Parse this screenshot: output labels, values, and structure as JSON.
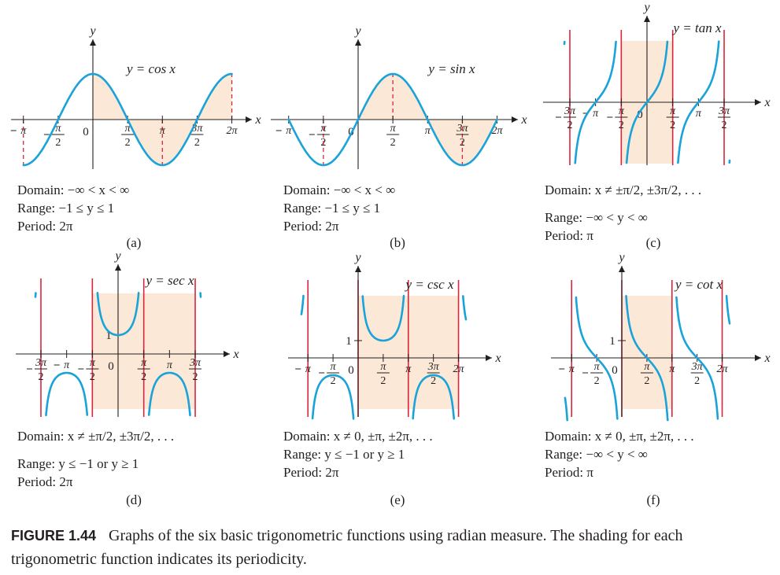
{
  "palette": {
    "curve": "#1aa3d9",
    "asymptote": "#d7263d",
    "shade": "#fbe8d7",
    "axis": "#231f20"
  },
  "figure": {
    "number": "FIGURE 1.44",
    "text": "Graphs of the six basic trigonometric functions using radian measure. The shading for each trigonometric function indicates its periodicity."
  },
  "chart_data": [
    {
      "type": "line",
      "panel": "(a)",
      "label": "y = cos x",
      "function": "cos",
      "xlim": [
        -3.1416,
        6.2832
      ],
      "ylim": [
        -1,
        1
      ],
      "tick_labels": [
        "π",
        "π/2",
        "0",
        "π/2",
        "π",
        "3π/2",
        "2π"
      ],
      "domain": "Domain: −∞ < x < ∞",
      "range": "Range:  −1 ≤ y ≤ 1",
      "period": "Period:  2π"
    },
    {
      "type": "line",
      "panel": "(b)",
      "label": "y = sin x",
      "function": "sin",
      "xlim": [
        -3.1416,
        6.2832
      ],
      "ylim": [
        -1,
        1
      ],
      "tick_labels": [
        "π",
        "π/2",
        "0",
        "π/2",
        "π",
        "3π/2",
        "2π"
      ],
      "domain": "Domain: −∞ < x < ∞",
      "range": "Range:  −1 ≤ y ≤ 1",
      "period": "Period:  2π"
    },
    {
      "type": "line",
      "panel": "(c)",
      "label": "y = tan x",
      "function": "tan",
      "asymptotes": [
        -4.7124,
        -1.5708,
        1.5708,
        4.7124
      ],
      "tick_labels": [
        "3π/2",
        "π",
        "π/2",
        "0",
        "π/2",
        "π",
        "3π/2"
      ],
      "domain": "Domain: x ≠ ±π/2, ±3π/2, . . .",
      "range": "Range:  −∞ < y < ∞",
      "period": "Period:  π"
    },
    {
      "type": "line",
      "panel": "(d)",
      "label": "y = sec x",
      "function": "sec",
      "asymptotes": [
        -4.7124,
        -1.5708,
        1.5708,
        4.7124
      ],
      "tick_labels": [
        "3π/2",
        "π",
        "π/2",
        "0",
        "π/2",
        "π",
        "3π/2"
      ],
      "y_tick": "1",
      "domain": "Domain: x ≠ ±π/2, ±3π/2, . . .",
      "range": "Range:  y ≤ −1 or y ≥ 1",
      "period": "Period:  2π"
    },
    {
      "type": "line",
      "panel": "(e)",
      "label": "y = csc x",
      "function": "csc",
      "asymptotes": [
        -3.1416,
        0,
        3.1416,
        6.2832
      ],
      "tick_labels": [
        "π",
        "π/2",
        "0",
        "π/2",
        "π",
        "3π/2",
        "2π"
      ],
      "y_tick": "1",
      "domain": "Domain: x ≠ 0, ±π, ±2π, . . .",
      "range": "Range:  y ≤ −1 or y ≥ 1",
      "period": "Period:  2π"
    },
    {
      "type": "line",
      "panel": "(f)",
      "label": "y = cot x",
      "function": "cot",
      "asymptotes": [
        -3.1416,
        0,
        3.1416,
        6.2832
      ],
      "tick_labels": [
        "π",
        "π/2",
        "0",
        "π/2",
        "π",
        "3π/2",
        "2π"
      ],
      "y_tick": "1",
      "domain": "Domain: x ≠ 0, ±π, ±2π, . . .",
      "range": "Range:  −∞ < y < ∞",
      "period": "Period:  π"
    }
  ],
  "axis_labels": {
    "x": "x",
    "y": "y"
  }
}
